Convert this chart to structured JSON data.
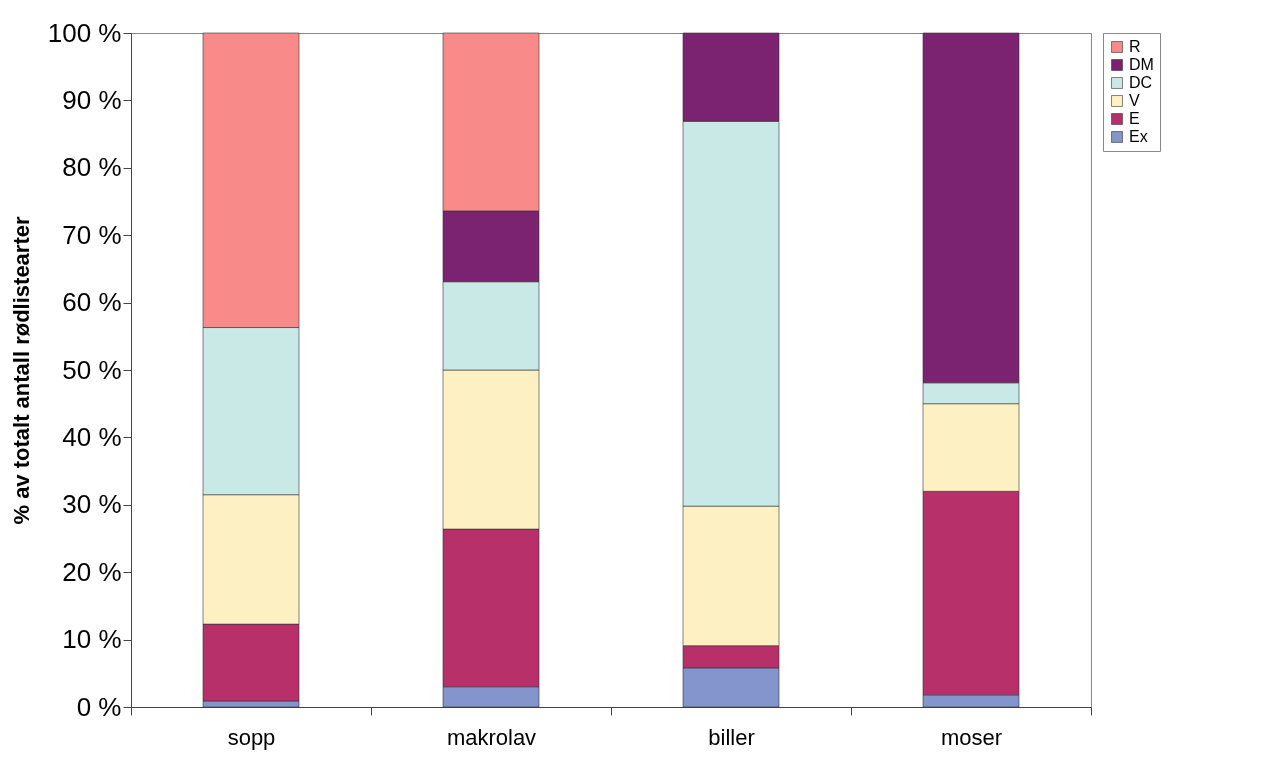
{
  "chart_data": {
    "type": "bar",
    "stacked": true,
    "ylabel": "% av totalt antall rødlistearter",
    "categories": [
      "sopp",
      "makrolav",
      "biller",
      "moser"
    ],
    "series": [
      {
        "name": "Ex",
        "color": "#8395cc",
        "values": [
          0.9,
          3.0,
          5.8,
          1.8
        ]
      },
      {
        "name": "E",
        "color": "#b8306a",
        "values": [
          11.4,
          23.4,
          3.3,
          30.2
        ]
      },
      {
        "name": "V",
        "color": "#fdf1c3",
        "values": [
          19.2,
          23.6,
          20.7,
          13.0
        ]
      },
      {
        "name": "DC",
        "color": "#c9e9e6",
        "values": [
          24.8,
          13.1,
          57.1,
          3.1
        ]
      },
      {
        "name": "DM",
        "color": "#7b2270",
        "values": [
          null,
          10.5,
          13.1,
          51.9
        ]
      },
      {
        "name": "R",
        "color": "#f88a8a",
        "values": [
          43.7,
          26.4,
          null,
          null
        ]
      }
    ],
    "ylim": [
      0,
      100
    ],
    "yticks": [
      {
        "value": 0,
        "label": "0 %"
      },
      {
        "value": 10,
        "label": "10 %"
      },
      {
        "value": 20,
        "label": "20 %"
      },
      {
        "value": 30,
        "label": "30 %"
      },
      {
        "value": 40,
        "label": "40 %"
      },
      {
        "value": 50,
        "label": "50 %"
      },
      {
        "value": 60,
        "label": "60 %"
      },
      {
        "value": 70,
        "label": "70 %"
      },
      {
        "value": 80,
        "label": "80 %"
      },
      {
        "value": 90,
        "label": "90 %"
      },
      {
        "value": 100,
        "label": "100 %"
      }
    ],
    "grid": false,
    "legend": "right"
  }
}
